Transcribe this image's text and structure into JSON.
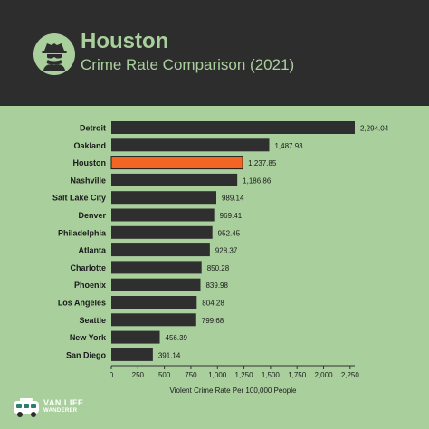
{
  "header": {
    "title": "Houston",
    "subtitle": "Crime Rate Comparison (2021)",
    "icon": "spy-icon"
  },
  "brand": {
    "line1": "VAN LIFE",
    "line2": "WANDERER",
    "icon": "van-icon"
  },
  "colors": {
    "background": "#a9cf9d",
    "header": "#2d2d2d",
    "bar": "#2f2f2f",
    "highlight": "#f26522",
    "text": "#1a1a1a"
  },
  "chart_data": {
    "type": "bar",
    "orientation": "horizontal",
    "categories": [
      "Detroit",
      "Oakland",
      "Houston",
      "Nashville",
      "Salt Lake City",
      "Denver",
      "Philadelphia",
      "Atlanta",
      "Charlotte",
      "Phoenix",
      "Los Angeles",
      "Seattle",
      "New York",
      "San Diego"
    ],
    "values": [
      2294.04,
      1487.93,
      1237.85,
      1186.86,
      989.14,
      969.41,
      952.45,
      928.37,
      850.28,
      839.98,
      804.28,
      799.68,
      456.39,
      391.14
    ],
    "value_labels": [
      "2,294.04",
      "1,487.93",
      "1,237.85",
      "1,186.86",
      "989.14",
      "969.41",
      "952.45",
      "928.37",
      "850.28",
      "839.98",
      "804.28",
      "799.68",
      "456.39",
      "391.14"
    ],
    "highlight": "Houston",
    "xlabel": "Violent Crime Rate Per 100,000 People",
    "xlim": [
      0,
      2294.04
    ],
    "ticks": [
      0,
      250,
      500,
      750,
      1000,
      1250,
      1500,
      1750,
      2000,
      2250
    ],
    "tick_labels": [
      "0",
      "250",
      "500",
      "750",
      "1,000",
      "1,250",
      "1,500",
      "1,750",
      "2,000",
      "2,250"
    ],
    "grid": false
  }
}
